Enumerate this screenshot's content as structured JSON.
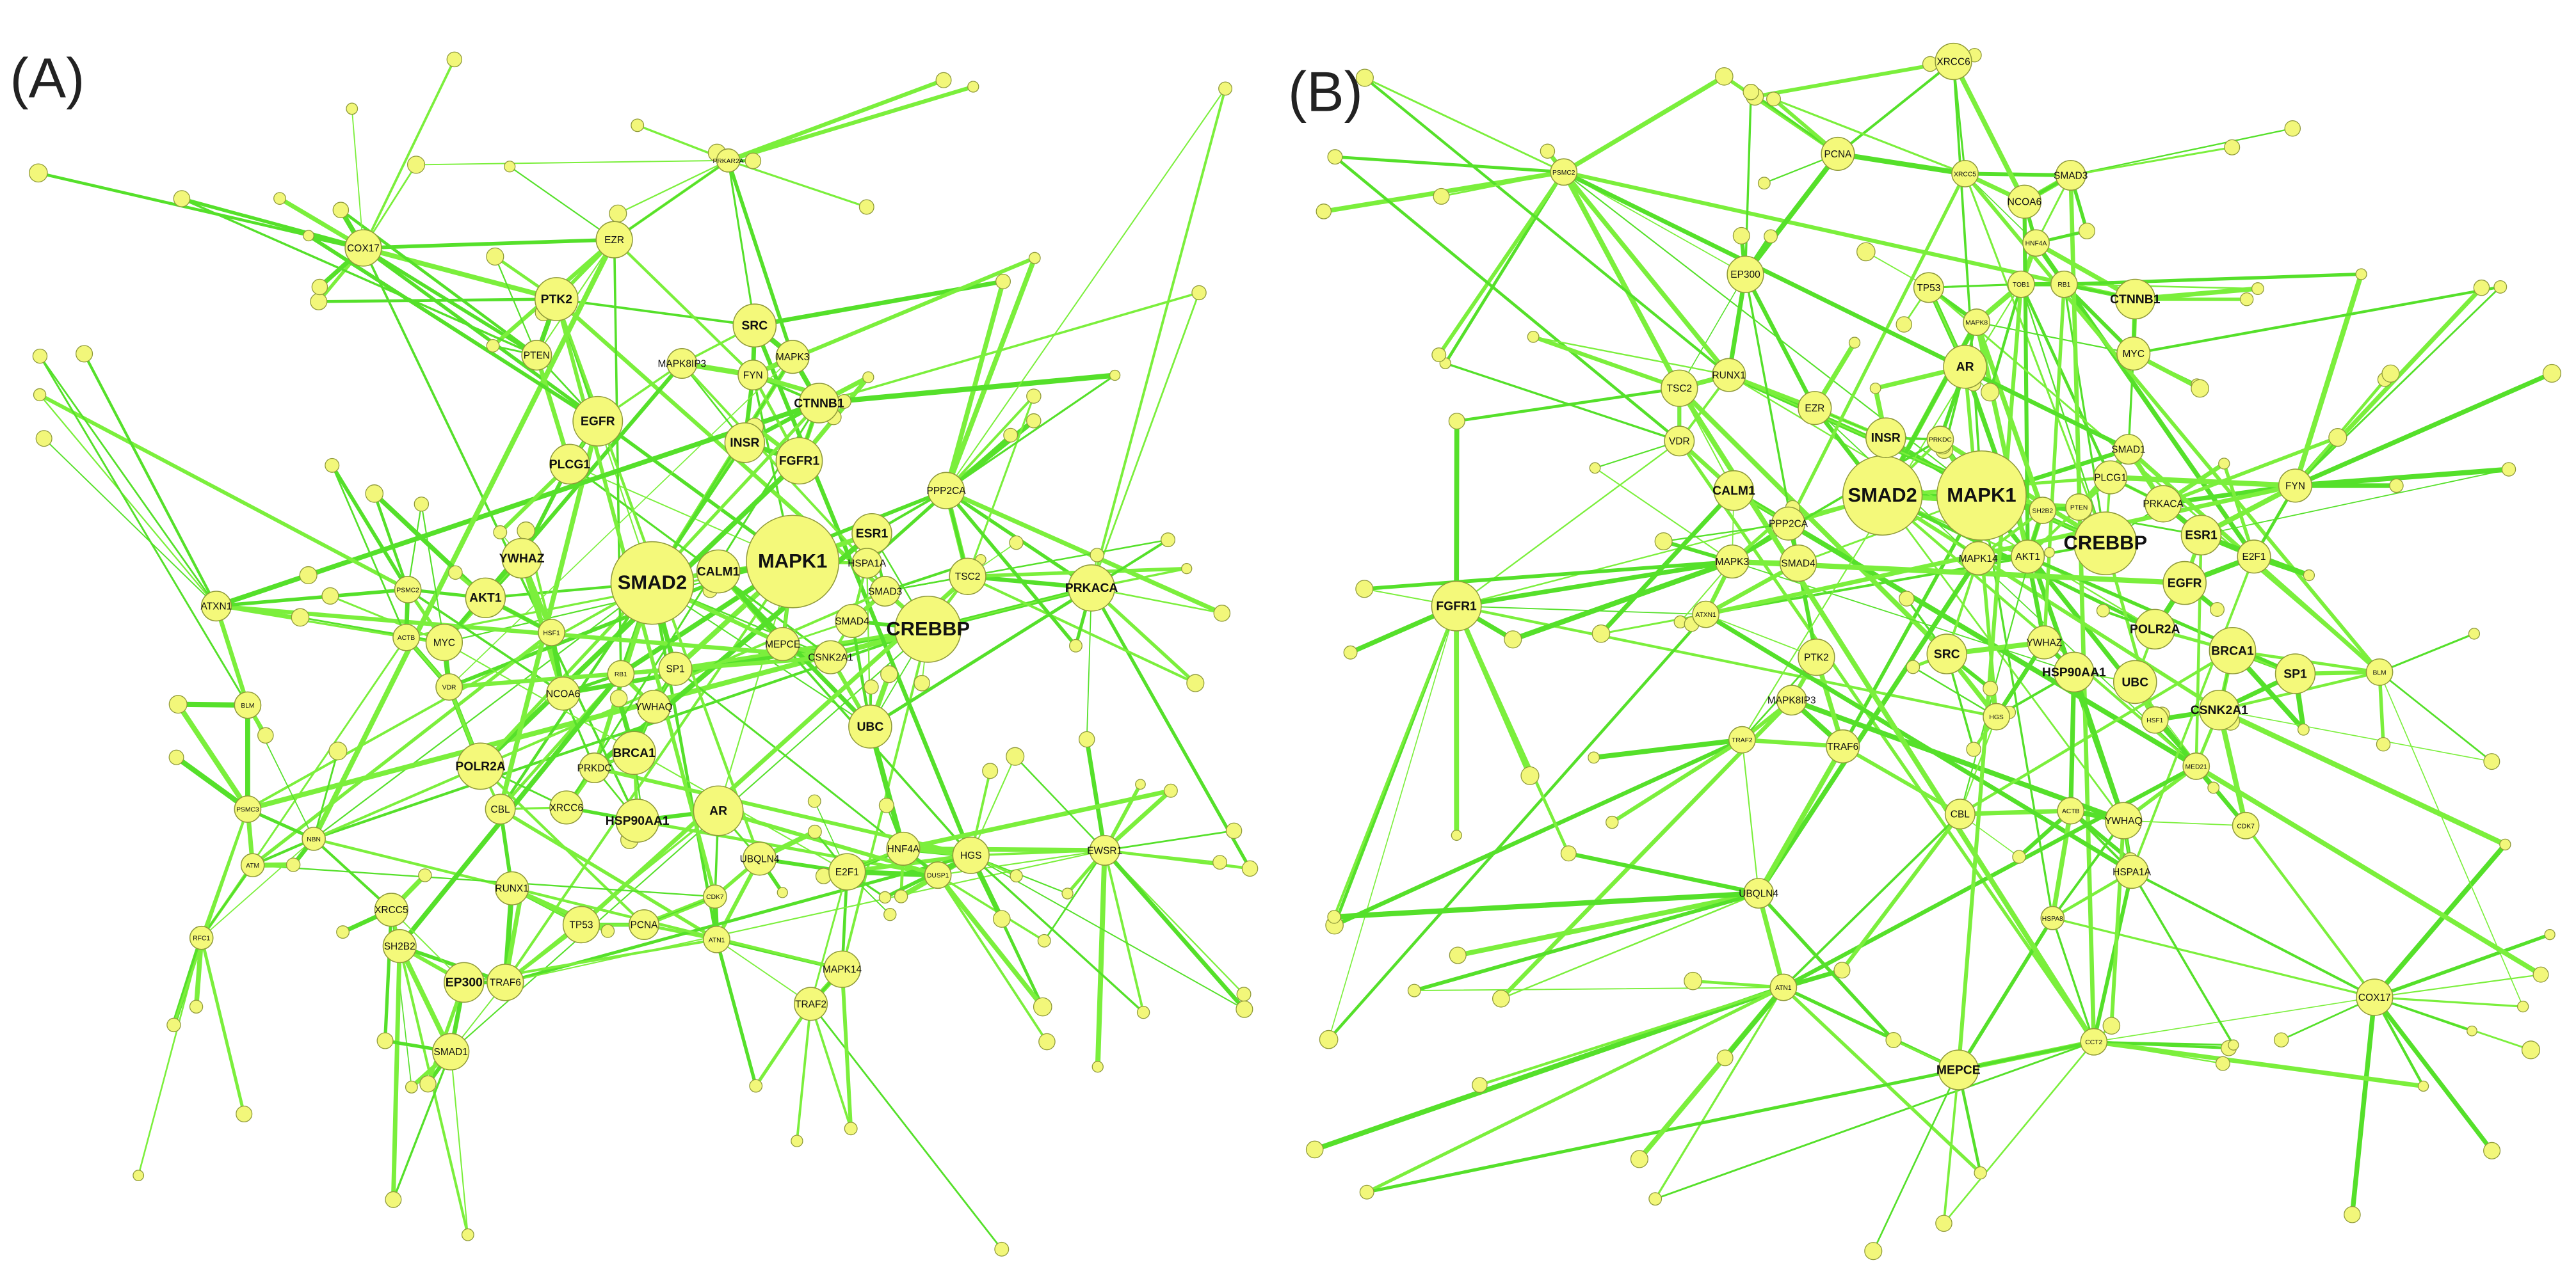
{
  "panels": [
    {
      "label": "(A)",
      "nodes": [
        "MAPK1",
        "SMAD2",
        "CREBBP",
        "EGFR",
        "SRC",
        "INSR",
        "FGFR1",
        "CTNNB1",
        "PTK2",
        "EZR",
        "COX17",
        "PTEN",
        "FYN",
        "MAPK3",
        "MAPK8IP3",
        "PLCG1",
        "CALM1",
        "YWHAZ",
        "AKT1",
        "MYC",
        "ESR1",
        "TSC2",
        "PRKACA",
        "PPP2CA",
        "HSPA1A",
        "SMAD3",
        "SMAD4",
        "MEPCE",
        "CSNK2A1",
        "UBC",
        "SP1",
        "RB1",
        "HSF1",
        "NCOA6",
        "YWHAQ",
        "BRCA1",
        "PRKDC",
        "XRCC6",
        "HSP90AA1",
        "AR",
        "POLR2A",
        "CBL",
        "RUNX1",
        "TP53",
        "PCNA",
        "ATN1",
        "CDK7",
        "UBQLN4",
        "E2F1",
        "HNF4A",
        "HGS",
        "DUSP1",
        "MAPK14",
        "TRAF2",
        "EP300",
        "TRAF6",
        "SH2B2",
        "XRCC5",
        "SMAD1",
        "VDR",
        "ACTB",
        "PSMC2",
        "ATXN1",
        "BLM",
        "PSMC3",
        "ATM",
        "RFC1",
        "NBN",
        "EWSR1",
        "PRKAR2A"
      ]
    },
    {
      "label": "(B)",
      "nodes": [
        "MAPK1",
        "SMAD2",
        "CREBBP",
        "AR",
        "INSR",
        "CTNNB1",
        "MYC",
        "RB1",
        "TOB1",
        "HNF4A",
        "NCOA6",
        "SMAD3",
        "XRCC5",
        "XRCC6",
        "PCNA",
        "EP300",
        "TP53",
        "RUNX1",
        "TSC2",
        "VDR",
        "EZR",
        "CALM1",
        "PPP2CA",
        "SMAD4",
        "MAPK3",
        "FGFR1",
        "ATXN1",
        "PTK2",
        "MAPK8IP3",
        "TRAF2",
        "TRAF6",
        "SRC",
        "HGS",
        "YWHAZ",
        "HSP90AA1",
        "UBC",
        "HSF1",
        "CSNK2A1",
        "BRCA1",
        "SP1",
        "POLR2A",
        "EGFR",
        "ESR1",
        "E2F1",
        "FYN",
        "PRKACA",
        "PLCG1",
        "SMAD1",
        "PTEN",
        "SH2B2",
        "MAPK14",
        "AKT1",
        "PRKDC",
        "MAPK8",
        "CBL",
        "ACTB",
        "YWHAQ",
        "HSPA1A",
        "HSPA8",
        "CDK7",
        "MED21",
        "UBQLN4",
        "ATN1",
        "MEPCE",
        "CCT2",
        "COX17",
        "BLM",
        "PSMC2"
      ]
    }
  ]
}
